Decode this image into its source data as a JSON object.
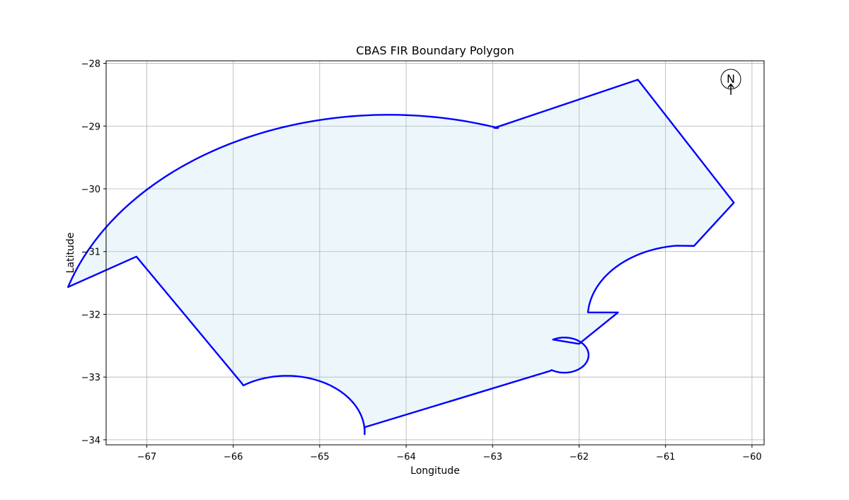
{
  "chart_data": {
    "type": "polygon-map",
    "title": "CBAS FIR Boundary Polygon",
    "xlabel": "Longitude",
    "ylabel": "Latitude",
    "xlim": [
      -67.47,
      -59.86
    ],
    "ylim": [
      -34.08,
      -27.96
    ],
    "xticks": [
      -67,
      -66,
      -65,
      -64,
      -63,
      -62,
      -61,
      -60
    ],
    "yticks": [
      -28,
      -29,
      -30,
      -31,
      -32,
      -33,
      -34
    ],
    "grid": true,
    "compass_label": "N",
    "polygon": {
      "boundary": "segments",
      "segments": [
        {
          "kind": "line",
          "points": [
            [
              -67.12,
              -31.08
            ],
            [
              -65.9,
              -33.1
            ]
          ]
        },
        {
          "kind": "arc",
          "center": [
            -65.38,
            -33.88
          ],
          "radius": 0.9,
          "start_deg": 124,
          "end_deg": -2,
          "direction": "cw"
        },
        {
          "kind": "line",
          "points": [
            [
              -64.48,
              -33.8
            ],
            [
              -62.33,
              -32.9
            ]
          ]
        },
        {
          "kind": "arc",
          "center": [
            -62.17,
            -32.65
          ],
          "radius": 0.28,
          "start_deg": 238,
          "end_deg": 118,
          "direction": "ccw"
        },
        {
          "kind": "line",
          "points": [
            [
              -62.0,
              -32.47
            ],
            [
              -61.55,
              -31.97
            ]
          ]
        },
        {
          "kind": "arc",
          "center": [
            -60.75,
            -32.05
          ],
          "radius": 1.15,
          "start_deg": 176,
          "end_deg": 96,
          "direction": "cw"
        },
        {
          "kind": "line",
          "points": [
            [
              -60.67,
              -30.91
            ],
            [
              -60.21,
              -30.22
            ],
            [
              -61.32,
              -28.26
            ],
            [
              -62.98,
              -29.03
            ]
          ]
        },
        {
          "kind": "arc",
          "center": [
            -64.2,
            -32.7
          ],
          "radius": 3.88,
          "start_deg": 71,
          "end_deg": 163,
          "direction": "ccw"
        }
      ],
      "edge_color": "#0000ff",
      "fill_color": "#add8e6",
      "fill_alpha": 0.22
    }
  }
}
